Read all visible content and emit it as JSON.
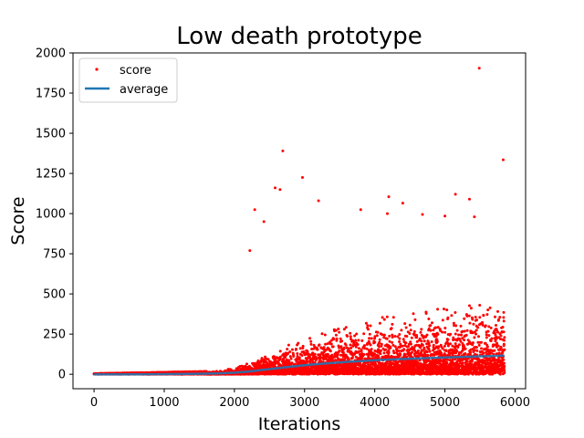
{
  "chart_data": {
    "type": "scatter",
    "title": "Low death prototype",
    "xlabel": "Iterations",
    "ylabel": "Score",
    "xlim": [
      -300,
      6150
    ],
    "ylim": [
      -90,
      2000
    ],
    "xticks": [
      0,
      1000,
      2000,
      3000,
      4000,
      5000,
      6000
    ],
    "yticks": [
      0,
      250,
      500,
      750,
      1000,
      1250,
      1500,
      1750,
      2000
    ],
    "grid": false,
    "legend_position": "top-left",
    "series": [
      {
        "name": "score",
        "kind": "scatter",
        "color": "#ff0000",
        "x_range": [
          0,
          5850
        ],
        "count": 5850,
        "density": "dense red points along x from 0 to 5850; near 0 up to ~1700, spreading to 0-500 after 2200",
        "notable_points": [
          {
            "x": 5490,
            "y": 1905
          },
          {
            "x": 2690,
            "y": 1390
          },
          {
            "x": 5830,
            "y": 1335
          },
          {
            "x": 2970,
            "y": 1225
          },
          {
            "x": 2580,
            "y": 1160
          },
          {
            "x": 2650,
            "y": 1150
          },
          {
            "x": 5150,
            "y": 1120
          },
          {
            "x": 4200,
            "y": 1105
          },
          {
            "x": 5350,
            "y": 1090
          },
          {
            "x": 3200,
            "y": 1080
          },
          {
            "x": 4400,
            "y": 1065
          },
          {
            "x": 2290,
            "y": 1025
          },
          {
            "x": 3800,
            "y": 1025
          },
          {
            "x": 4180,
            "y": 1000
          },
          {
            "x": 5000,
            "y": 985
          },
          {
            "x": 5420,
            "y": 980
          },
          {
            "x": 2420,
            "y": 950
          },
          {
            "x": 4680,
            "y": 995
          },
          {
            "x": 2220,
            "y": 770
          }
        ]
      },
      {
        "name": "average",
        "kind": "line",
        "color": "#1f77b4",
        "points": [
          {
            "x": 0,
            "y": 0
          },
          {
            "x": 500,
            "y": 0
          },
          {
            "x": 1000,
            "y": 1
          },
          {
            "x": 1500,
            "y": 3
          },
          {
            "x": 1800,
            "y": 6
          },
          {
            "x": 2000,
            "y": 10
          },
          {
            "x": 2200,
            "y": 17
          },
          {
            "x": 2400,
            "y": 27
          },
          {
            "x": 2600,
            "y": 37
          },
          {
            "x": 2800,
            "y": 47
          },
          {
            "x": 3000,
            "y": 56
          },
          {
            "x": 3200,
            "y": 64
          },
          {
            "x": 3400,
            "y": 71
          },
          {
            "x": 3600,
            "y": 77
          },
          {
            "x": 3800,
            "y": 82
          },
          {
            "x": 4000,
            "y": 87
          },
          {
            "x": 4300,
            "y": 93
          },
          {
            "x": 4600,
            "y": 98
          },
          {
            "x": 5000,
            "y": 104
          },
          {
            "x": 5400,
            "y": 110
          },
          {
            "x": 5850,
            "y": 116
          }
        ]
      }
    ]
  }
}
